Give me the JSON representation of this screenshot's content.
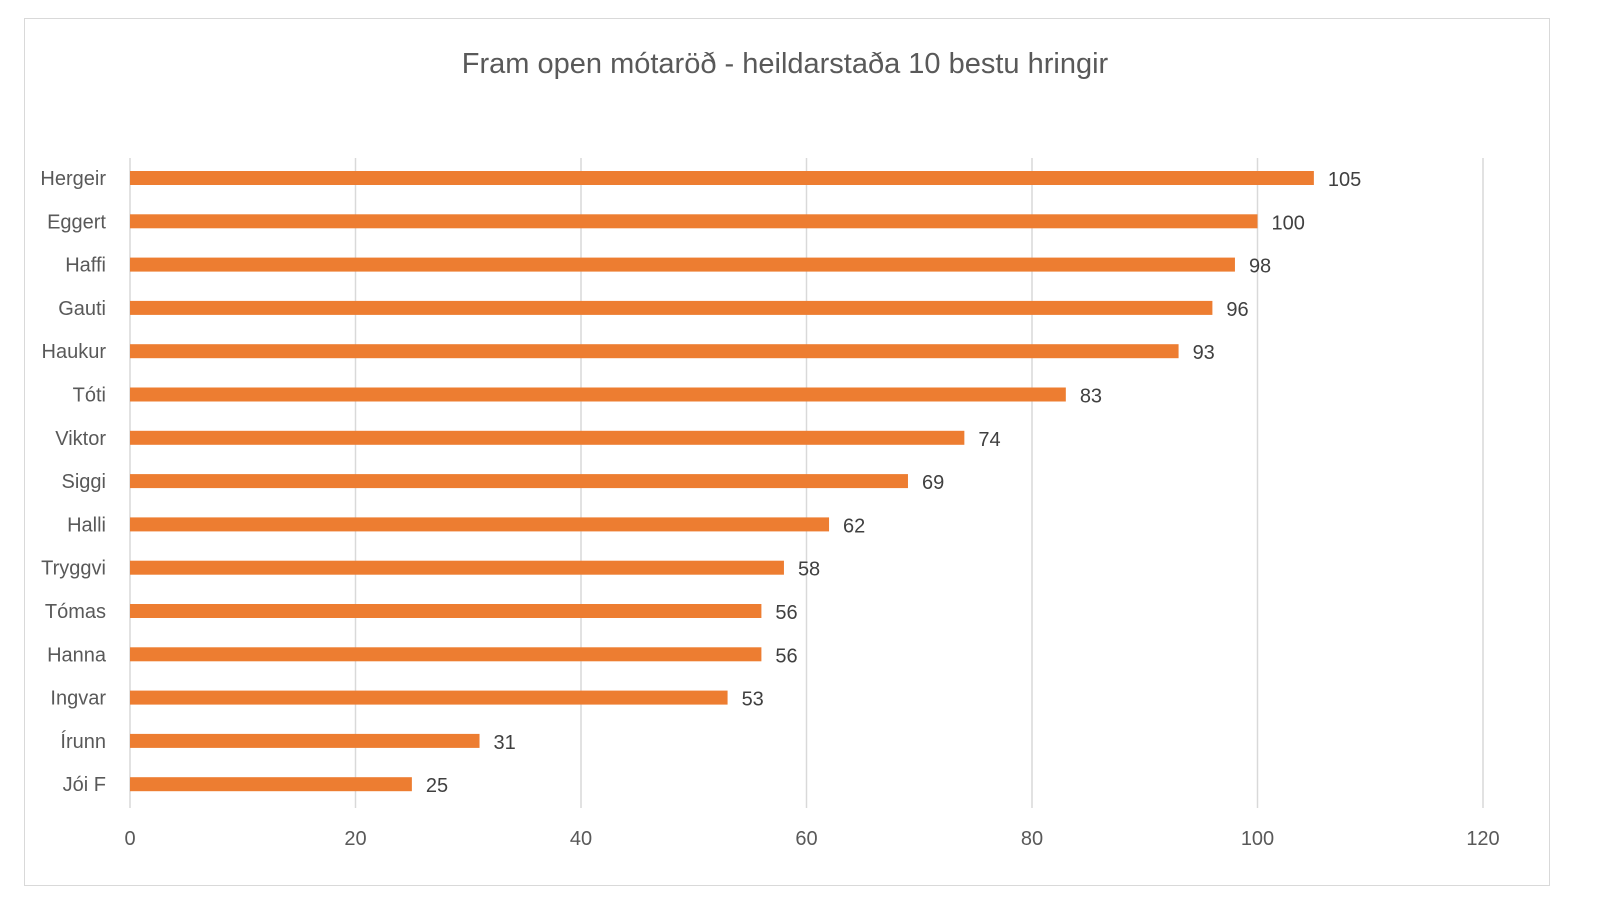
{
  "chart_data": {
    "type": "bar",
    "orientation": "horizontal",
    "title": "Fram open mótaröð - heildarstaða 10 bestu hringir",
    "categories": [
      "Hergeir",
      "Eggert",
      "Haffi",
      "Gauti",
      "Haukur",
      "Tóti",
      "Viktor",
      "Siggi",
      "Halli",
      "Tryggvi",
      "Tómas",
      "Hanna",
      "Ingvar",
      "Írunn",
      "Jói F"
    ],
    "values": [
      105,
      100,
      98,
      96,
      93,
      83,
      74,
      69,
      62,
      58,
      56,
      56,
      53,
      31,
      25
    ],
    "xlim": [
      0,
      120
    ],
    "xticks": [
      0,
      20,
      40,
      60,
      80,
      100,
      120
    ],
    "grid": true,
    "legend": "none",
    "data_labels": true,
    "bar_color": "#ED7D31",
    "gridline_color": "#D9D9D9",
    "text_color": "#595959"
  }
}
